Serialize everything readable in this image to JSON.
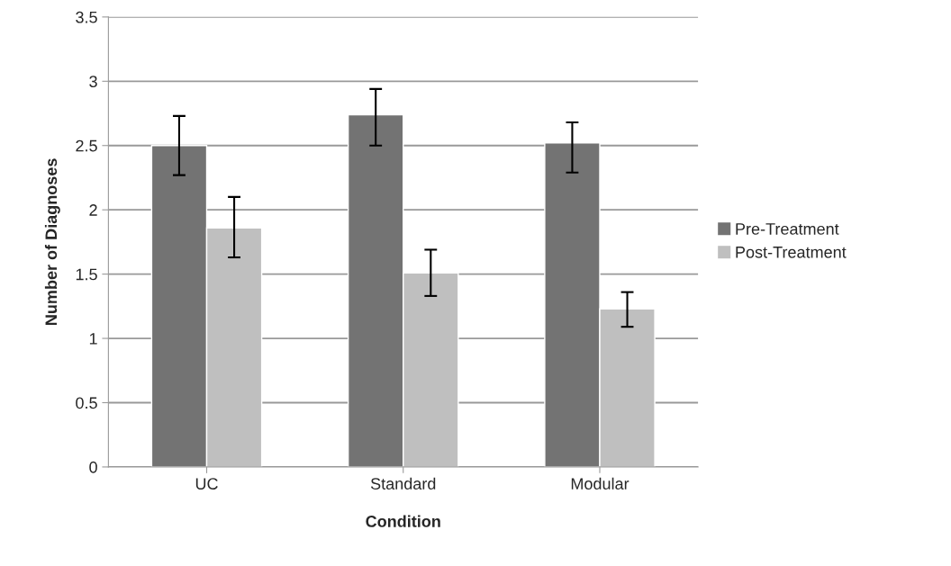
{
  "chart_data": {
    "type": "bar",
    "xlabel": "Condition",
    "ylabel": "Number of Diagnoses",
    "categories": [
      "UC",
      "Standard",
      "Modular"
    ],
    "series": [
      {
        "name": "Pre-Treatment",
        "color": "#737373",
        "values": [
          2.5,
          2.74,
          2.52
        ],
        "errors": [
          [
            2.27,
            2.73
          ],
          [
            2.5,
            2.94
          ],
          [
            2.29,
            2.68
          ]
        ]
      },
      {
        "name": "Post-Treatment",
        "color": "#bfbfbf",
        "values": [
          1.86,
          1.51,
          1.23
        ],
        "errors": [
          [
            1.63,
            2.1
          ],
          [
            1.33,
            1.69
          ],
          [
            1.09,
            1.36
          ]
        ]
      }
    ],
    "ylim": [
      0,
      3.5
    ],
    "yticks": [
      0,
      0.5,
      1,
      1.5,
      2,
      2.5,
      3,
      3.5
    ],
    "grid": "y",
    "legend": "right"
  }
}
